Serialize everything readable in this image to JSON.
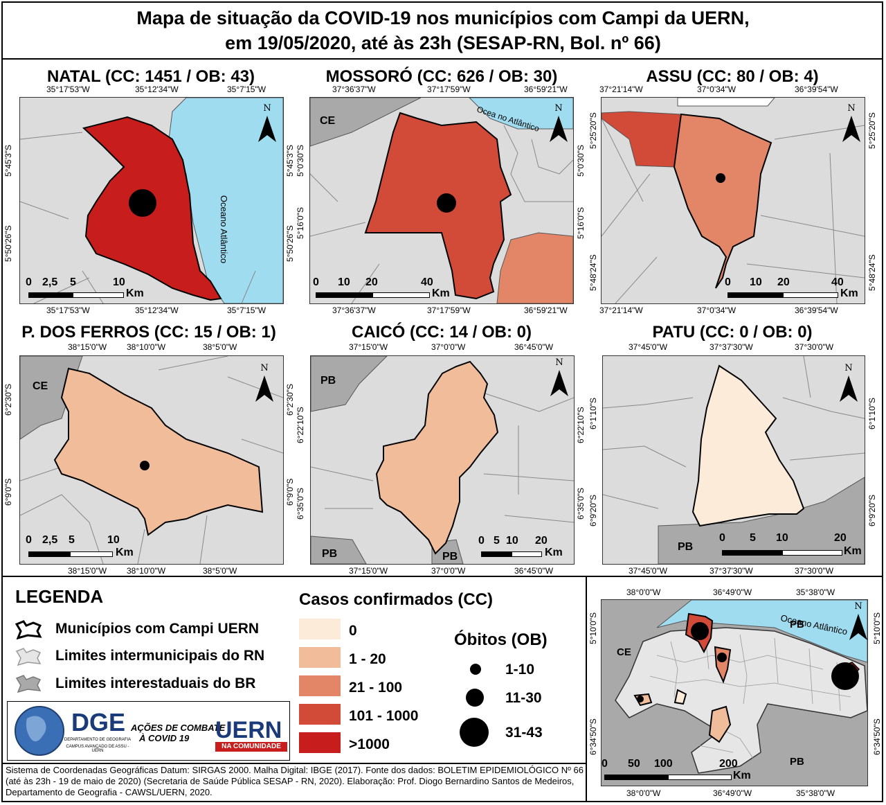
{
  "title": {
    "line1": "Mapa de situação da COVID-19 nos municípios com Campi da UERN,",
    "line2": "em 19/05/2020, até às 23h (SESAP-RN, Bol. nº 66)"
  },
  "colors": {
    "c0": "#fdebd9",
    "c1_20": "#f0bc9a",
    "c21_100": "#e38667",
    "c101_1000": "#d24a38",
    "c1000": "#c71d1d",
    "ocean": "#9fdcf0",
    "land": "#dcdcdc",
    "state": "#a9a9a9"
  },
  "panels": {
    "natal": {
      "title": "NATAL (CC: 1451 / OB: 43)",
      "top_coords": [
        "35°17'53\"W",
        "35°12'34\"W",
        "35°7'15\"W"
      ],
      "bottom_coords": [
        "35°17'53\"W",
        "35°12'34\"W",
        "35°7'15\"W"
      ],
      "left_coords": [
        "5°45'3\"S",
        "5°50'26\"S"
      ],
      "right_coords": [
        "5°45'3\"S",
        "5°50'26\"S"
      ],
      "ocean_label": "Oceano Atlântico",
      "scale": [
        "0",
        "2,5",
        "5",
        "10"
      ],
      "scale_unit": "Km"
    },
    "mossoro": {
      "title": "MOSSORÓ (CC: 626 / OB: 30)",
      "top_coords": [
        "37°36'37\"W",
        "37°17'59\"W",
        "36°59'21\"W"
      ],
      "bottom_coords": [
        "37°36'37\"W",
        "37°17'59\"W",
        "36°59'21\"W"
      ],
      "left_coords": [
        "5°0'30\"S",
        "5°16'0\"S"
      ],
      "right_coords": [
        "5°0'30\"S",
        "5°16'0\"S"
      ],
      "state_label": "CE",
      "ocean_label": "Ocea no Atlântico",
      "scale": [
        "0",
        "10",
        "20",
        "40"
      ],
      "scale_unit": "Km"
    },
    "assu": {
      "title": "ASSU (CC: 80 / OB: 4)",
      "top_coords": [
        "37°21'14\"W",
        "37°0'34\"W",
        "36°39'54\"W"
      ],
      "bottom_coords": [
        "37°21'14\"W",
        "37°0'34\"W",
        "36°39'54\"W"
      ],
      "left_coords": [
        "5°25'20\"S",
        "5°48'24\"S"
      ],
      "right_coords": [
        "5°25'20\"S",
        "5°48'24\"S"
      ],
      "scale": [
        "0",
        "10",
        "20",
        "40"
      ],
      "scale_unit": "Km"
    },
    "pferros": {
      "title": "P. DOS FERROS (CC: 15 / OB: 1)",
      "top_coords": [
        "38°15'0\"W",
        "38°10'0\"W",
        "38°5'0\"W"
      ],
      "bottom_coords": [
        "38°15'0\"W",
        "38°10'0\"W",
        "38°5'0\"W"
      ],
      "left_coords": [
        "6°2'30\"S",
        "6°9'0\"S"
      ],
      "right_coords": [
        "6°2'30\"S",
        "6°9'0\"S"
      ],
      "state_label": "CE",
      "scale": [
        "0",
        "2,5",
        "5",
        "10"
      ],
      "scale_unit": "Km"
    },
    "caico": {
      "title": "CAICÓ (CC: 14 / OB: 0)",
      "top_coords": [
        "37°15'0\"W",
        "37°0'0\"W",
        "36°45'0\"W"
      ],
      "bottom_coords": [
        "37°15'0\"W",
        "37°0'0\"W",
        "36°45'0\"W"
      ],
      "left_coords": [
        "6°22'10\"S",
        "6°35'0\"S"
      ],
      "right_coords": [
        "6°22'10\"S",
        "6°35'0\"S"
      ],
      "state_labels": [
        "PB",
        "PB",
        "PB"
      ],
      "scale": [
        "0",
        "5",
        "10",
        "20"
      ],
      "scale_unit": "Km"
    },
    "patu": {
      "title": "PATU (CC: 0 / OB: 0)",
      "top_coords": [
        "37°45'0\"W",
        "37°37'30\"W",
        "37°30'0\"W"
      ],
      "bottom_coords": [
        "37°45'0\"W",
        "37°37'30\"W",
        "37°30'0\"W"
      ],
      "left_coords": [
        "6°1'10\"S",
        "6°9'20\"S"
      ],
      "right_coords": [
        "6°1'10\"S",
        "6°9'20\"S"
      ],
      "state_label": "PB",
      "scale": [
        "0",
        "5",
        "10",
        "20"
      ],
      "scale_unit": "Km"
    },
    "overview": {
      "top_coords": [
        "38°0'0\"W",
        "36°49'0\"W",
        "35°38'0\"W"
      ],
      "bottom_coords": [
        "38°0'0\"W",
        "36°49'0\"W",
        "35°38'0\"W"
      ],
      "left_coords": [
        "5°10'0\"S",
        "6°34'50\"S"
      ],
      "right_coords": [
        "5°10'0\"S",
        "6°34'50\"S"
      ],
      "labels": [
        "CE",
        "PB",
        "PB",
        "Oceano Atlântico"
      ],
      "scale": [
        "0",
        "50",
        "100",
        "200"
      ],
      "scale_unit": "Km"
    }
  },
  "north": "N",
  "legend": {
    "heading": "LEGENDA",
    "items": [
      "Municípios com Campi UERN",
      "Limites intermunicipais do RN",
      "Limites interestaduais do BR"
    ],
    "cases_heading": "Casos confirmados (CC)",
    "cases": [
      "0",
      "1 - 20",
      "21 - 100",
      "101 - 1000",
      ">1000"
    ],
    "deaths_heading": "Óbitos (OB)",
    "deaths": [
      "1-10",
      "11-30",
      "31-43"
    ]
  },
  "logos": {
    "dge": "DGE",
    "dge_sub1": "DEPARTAMENTO DE GEOGRAFIA",
    "dge_sub2": "CAMPUS AVANÇADO DE ASSU - UERN",
    "acoes1": "AÇÕES DE COMBATE",
    "acoes2": "À COVID 19",
    "uern": "UERN",
    "uern_sub": "NA COMUNIDADE"
  },
  "footer": "Sistema de Coordenadas Geográficas Datum: SIRGAS 2000. Malha Digital: IBGE (2017). Fonte dos dados: BOLETIM EPIDEMIOLÓGICO Nº 66 (até às 23h - 19 de maio de 2020) (Secretaria de Saúde Pública SESAP - RN, 2020). Elaboração: Prof. Diogo Bernardino Santos de Medeiros, Departamento de Geografia - CAWSL/UERN, 2020."
}
